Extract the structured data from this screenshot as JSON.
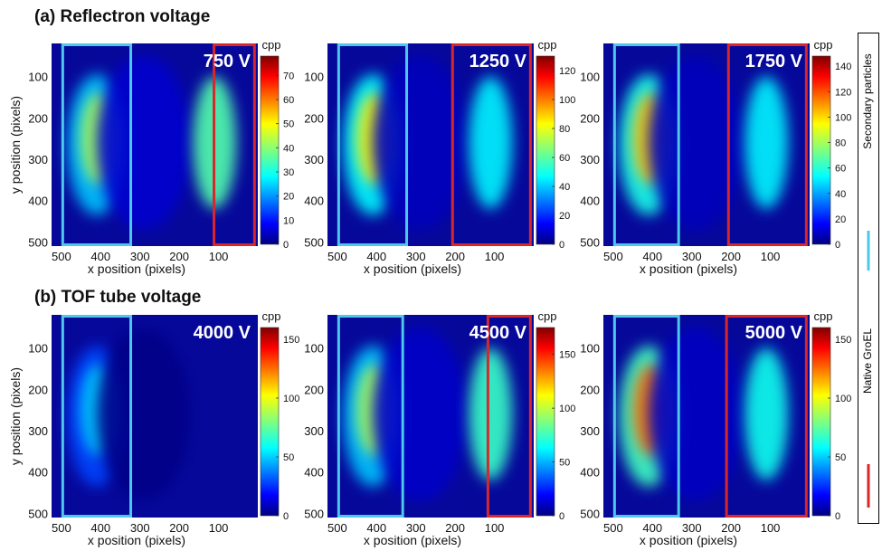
{
  "section_a_title": "(a) Reflectron voltage",
  "section_b_title": "(b) TOF tube voltage",
  "legend": {
    "secondary_label": "Secondary particles",
    "secondary_color": "#4dc8e8",
    "native_label": "Native GroEL",
    "native_color": "#d9262b"
  },
  "chart_data": [
    {
      "type": "heatmap",
      "panel_label": "750 V",
      "colorbar_label": "cpp",
      "xlabel": "x position (pixels)",
      "ylabel": "y position (pixels)",
      "x_ticks": [
        500,
        400,
        300,
        200,
        100
      ],
      "y_ticks": [
        100,
        200,
        300,
        400,
        500
      ],
      "colorbar_ticks": [
        0,
        10,
        20,
        30,
        40,
        50,
        60,
        70
      ],
      "colorbar_range": [
        0,
        78
      ],
      "secondary_region_x": [
        500,
        320
      ],
      "native_region_x": [
        115,
        5
      ]
    },
    {
      "type": "heatmap",
      "panel_label": "1250 V",
      "colorbar_label": "cpp",
      "xlabel": "x position (pixels)",
      "ylabel": "",
      "x_ticks": [
        500,
        400,
        300,
        200,
        100
      ],
      "y_ticks": [
        100,
        200,
        300,
        400,
        500
      ],
      "colorbar_ticks": [
        0,
        20,
        40,
        60,
        80,
        100,
        120
      ],
      "colorbar_range": [
        0,
        130
      ],
      "secondary_region_x": [
        500,
        320
      ],
      "native_region_x": [
        210,
        5
      ]
    },
    {
      "type": "heatmap",
      "panel_label": "1750 V",
      "colorbar_label": "cpp",
      "xlabel": "x position (pixels)",
      "ylabel": "",
      "x_ticks": [
        500,
        400,
        300,
        200,
        100
      ],
      "y_ticks": [
        100,
        200,
        300,
        400,
        500
      ],
      "colorbar_ticks": [
        0,
        20,
        40,
        60,
        80,
        100,
        120,
        140
      ],
      "colorbar_range": [
        0,
        148
      ],
      "secondary_region_x": [
        500,
        330
      ],
      "native_region_x": [
        210,
        5
      ]
    },
    {
      "type": "heatmap",
      "panel_label": "4000 V",
      "colorbar_label": "cpp",
      "xlabel": "x position (pixels)",
      "ylabel": "y position (pixels)",
      "x_ticks": [
        500,
        400,
        300,
        200,
        100
      ],
      "y_ticks": [
        100,
        200,
        300,
        400,
        500
      ],
      "colorbar_ticks": [
        0,
        50,
        100,
        150
      ],
      "colorbar_range": [
        0,
        160
      ],
      "secondary_region_x": [
        500,
        320
      ],
      "native_region_x": null
    },
    {
      "type": "heatmap",
      "panel_label": "4500 V",
      "colorbar_label": "cpp",
      "xlabel": "x position (pixels)",
      "ylabel": "",
      "x_ticks": [
        500,
        400,
        300,
        200,
        100
      ],
      "y_ticks": [
        100,
        200,
        300,
        400,
        500
      ],
      "colorbar_ticks": [
        0,
        50,
        100,
        150
      ],
      "colorbar_range": [
        0,
        175
      ],
      "secondary_region_x": [
        500,
        330
      ],
      "native_region_x": [
        120,
        5
      ]
    },
    {
      "type": "heatmap",
      "panel_label": "5000 V",
      "colorbar_label": "cpp",
      "xlabel": "x position (pixels)",
      "ylabel": "",
      "x_ticks": [
        500,
        400,
        300,
        200,
        100
      ],
      "y_ticks": [
        100,
        200,
        300,
        400,
        500
      ],
      "colorbar_ticks": [
        0,
        50,
        100,
        150
      ],
      "colorbar_range": [
        0,
        160
      ],
      "secondary_region_x": [
        500,
        330
      ],
      "native_region_x": [
        215,
        5
      ]
    }
  ]
}
